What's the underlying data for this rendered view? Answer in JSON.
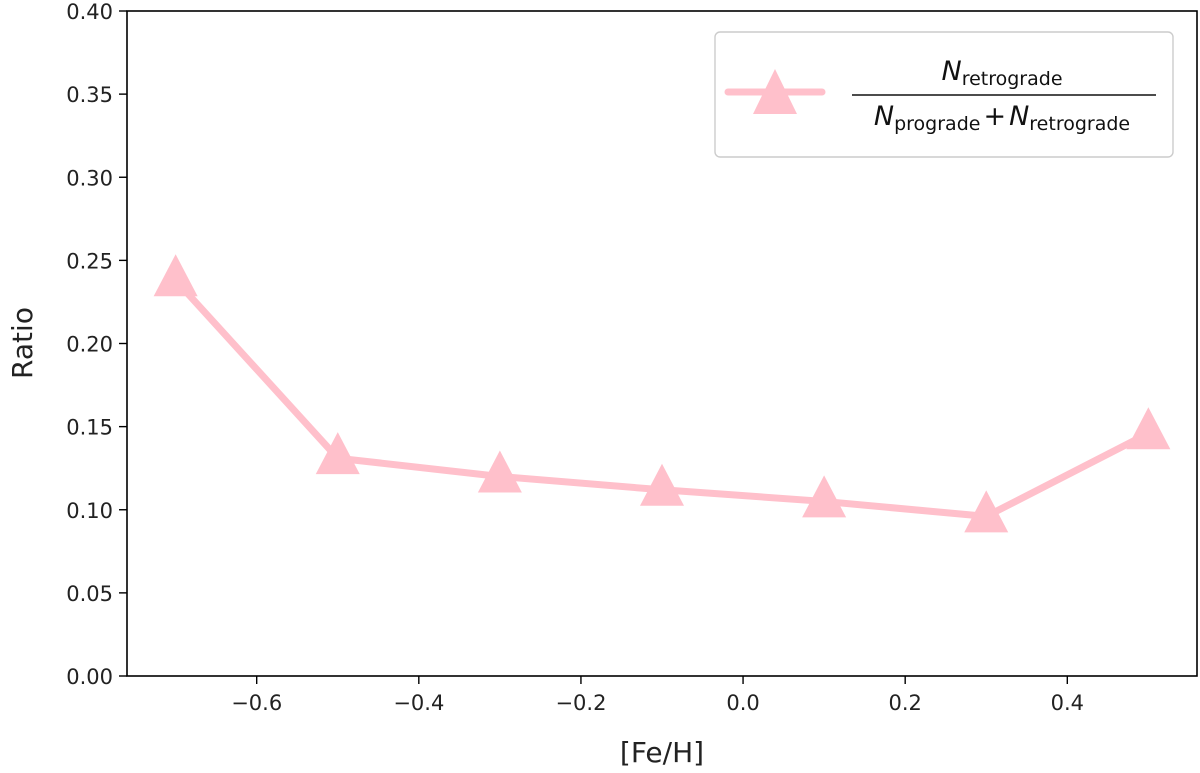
{
  "chart_data": {
    "type": "line",
    "title": "",
    "xlabel": "[Fe/H]",
    "ylabel": "Ratio",
    "xlim": [
      -0.76,
      0.56
    ],
    "ylim": [
      0.0,
      0.4
    ],
    "x_ticks": [
      -0.6,
      -0.4,
      -0.2,
      0.0,
      0.2,
      0.4
    ],
    "x_tick_labels": [
      "−0.6",
      "−0.4",
      "−0.2",
      "0.0",
      "0.2",
      "0.4"
    ],
    "y_ticks": [
      0.0,
      0.05,
      0.1,
      0.15,
      0.2,
      0.25,
      0.3,
      0.35,
      0.4
    ],
    "y_tick_labels": [
      "0.00",
      "0.05",
      "0.10",
      "0.15",
      "0.20",
      "0.25",
      "0.30",
      "0.35",
      "0.40"
    ],
    "grid": false,
    "legend_position": "top-right",
    "series": [
      {
        "name": "N_retrograde / (N_prograde + N_retrograde)",
        "color": "#ffc0cb",
        "marker": "triangle",
        "x": [
          -0.7,
          -0.5,
          -0.3,
          -0.1,
          0.1,
          0.3,
          0.5
        ],
        "values": [
          0.238,
          0.131,
          0.12,
          0.112,
          0.105,
          0.096,
          0.146
        ]
      }
    ],
    "legend": {
      "numerator": {
        "symbol": "N",
        "subscript": "retrograde"
      },
      "denominator": [
        {
          "symbol": "N",
          "subscript": "prograde"
        },
        {
          "operator": "+"
        },
        {
          "symbol": "N",
          "subscript": "retrograde"
        }
      ]
    }
  }
}
